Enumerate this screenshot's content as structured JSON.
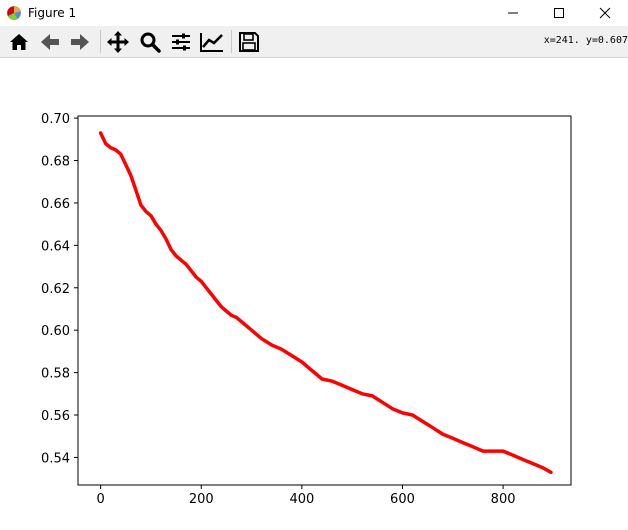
{
  "window": {
    "title": "Figure 1",
    "controls": [
      "minimize",
      "maximize",
      "close"
    ]
  },
  "toolbar": {
    "buttons": [
      {
        "name": "home-icon"
      },
      {
        "name": "back-arrow-icon"
      },
      {
        "name": "forward-arrow-icon"
      },
      {
        "name": "pan-icon"
      },
      {
        "name": "zoom-icon"
      },
      {
        "name": "subplots-icon"
      },
      {
        "name": "edit-curve-icon"
      },
      {
        "name": "save-icon"
      }
    ],
    "coords": "x=241.  y=0.607"
  },
  "chart_data": {
    "type": "line",
    "title": "",
    "xlabel": "",
    "ylabel": "",
    "xlim": [
      -45,
      935
    ],
    "ylim": [
      0.527,
      0.701
    ],
    "xticks": [
      0,
      200,
      400,
      600,
      800
    ],
    "yticks": [
      "0.54",
      "0.56",
      "0.58",
      "0.60",
      "0.62",
      "0.64",
      "0.66",
      "0.68",
      "0.70"
    ],
    "grid": false,
    "series": [
      {
        "color": "#ff0000",
        "x": [
          0,
          10,
          20,
          30,
          40,
          50,
          60,
          70,
          80,
          90,
          100,
          110,
          120,
          130,
          140,
          150,
          160,
          170,
          180,
          190,
          200,
          210,
          220,
          230,
          240,
          250,
          260,
          270,
          280,
          290,
          300,
          320,
          340,
          360,
          380,
          400,
          420,
          440,
          460,
          480,
          500,
          520,
          540,
          560,
          580,
          600,
          620,
          640,
          660,
          680,
          700,
          720,
          740,
          760,
          780,
          800,
          820,
          840,
          860,
          880,
          895
        ],
        "y": [
          0.693,
          0.688,
          0.686,
          0.685,
          0.683,
          0.678,
          0.673,
          0.666,
          0.659,
          0.656,
          0.654,
          0.65,
          0.647,
          0.643,
          0.638,
          0.635,
          0.633,
          0.631,
          0.628,
          0.625,
          0.623,
          0.62,
          0.617,
          0.614,
          0.611,
          0.609,
          0.607,
          0.606,
          0.604,
          0.602,
          0.6,
          0.596,
          0.593,
          0.591,
          0.588,
          0.585,
          0.581,
          0.577,
          0.576,
          0.574,
          0.572,
          0.57,
          0.569,
          0.566,
          0.563,
          0.561,
          0.56,
          0.557,
          0.554,
          0.551,
          0.549,
          0.547,
          0.545,
          0.543,
          0.543,
          0.543,
          0.541,
          0.539,
          0.537,
          0.535,
          0.533
        ]
      }
    ]
  }
}
